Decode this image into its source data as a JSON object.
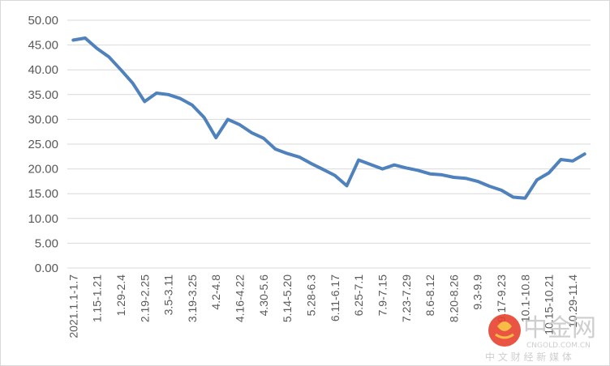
{
  "chart_data": {
    "type": "line",
    "title": "",
    "xlabel": "",
    "ylabel": "",
    "ylim": [
      0,
      50
    ],
    "yticks": [
      "0.00",
      "5.00",
      "10.00",
      "15.00",
      "20.00",
      "25.00",
      "30.00",
      "35.00",
      "40.00",
      "45.00",
      "50.00"
    ],
    "grid": true,
    "legend": "none",
    "color": "#4f81bd",
    "x_tick_labels": [
      "2021.1.1-1.7",
      "1.15-1.21",
      "1.29-2.4",
      "2.19-2.25",
      "3.5-3.11",
      "3.19-3.25",
      "4.2-4.8",
      "4.16-4.22",
      "4.30-5.6",
      "5.14-5.20",
      "5.28-6.3",
      "6.11-6.17",
      "6.25-7.1",
      "7.9-7.15",
      "7.23-7.29",
      "8.6-8.12",
      "8.20-8.26",
      "9.3-9.9",
      "9.17-9.23",
      "10.1-10.8",
      "10.15-10.21",
      "10.29-11.4"
    ],
    "values": [
      46.0,
      46.4,
      44.3,
      42.6,
      40.0,
      37.3,
      33.6,
      35.3,
      35.0,
      34.2,
      32.9,
      30.4,
      26.3,
      30.0,
      28.9,
      27.3,
      26.2,
      24.0,
      23.1,
      22.4,
      21.1,
      19.9,
      18.7,
      16.6,
      21.8,
      20.9,
      20.0,
      20.8,
      20.2,
      19.7,
      19.0,
      18.8,
      18.3,
      18.1,
      17.5,
      16.5,
      15.7,
      14.3,
      14.1,
      17.8,
      19.2,
      21.9,
      21.6,
      23.0
    ]
  },
  "watermark": {
    "logo_name": "cngold-logo-icon",
    "brand_cn": "中金网",
    "domain": "CNGOLD.COM.CN",
    "slogan": "中 文 财 经 新 媒 体"
  }
}
